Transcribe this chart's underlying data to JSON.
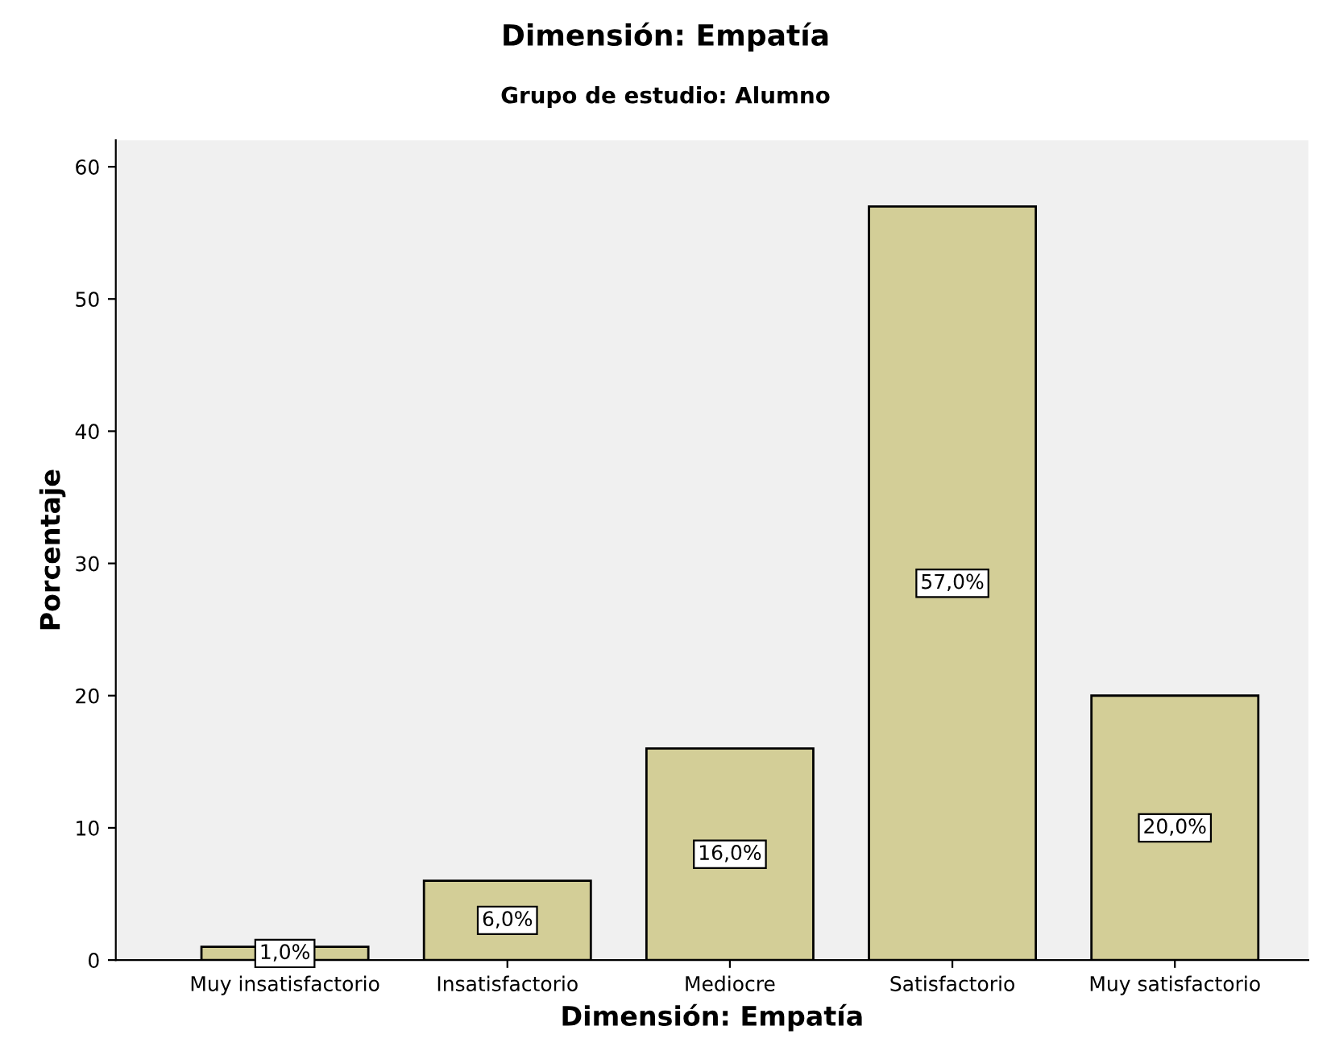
{
  "chart_data": {
    "type": "bar",
    "title": "Dimensión: Empatía",
    "subtitle": "Grupo de estudio: Alumno",
    "xlabel": "Dimensión: Empatía",
    "ylabel": "Porcentaje",
    "categories": [
      "Muy insatisfactorio",
      "Insatisfactorio",
      "Mediocre",
      "Satisfactorio",
      "Muy satisfactorio"
    ],
    "values": [
      1.0,
      6.0,
      16.0,
      57.0,
      20.0
    ],
    "value_labels": [
      "1,0%",
      "6,0%",
      "16,0%",
      "57,0%",
      "20,0%"
    ],
    "color": "#d3ce97",
    "ylim": [
      0,
      62
    ],
    "yticks": [
      0,
      10,
      20,
      30,
      40,
      50,
      60
    ],
    "grid": false,
    "legend": false
  }
}
